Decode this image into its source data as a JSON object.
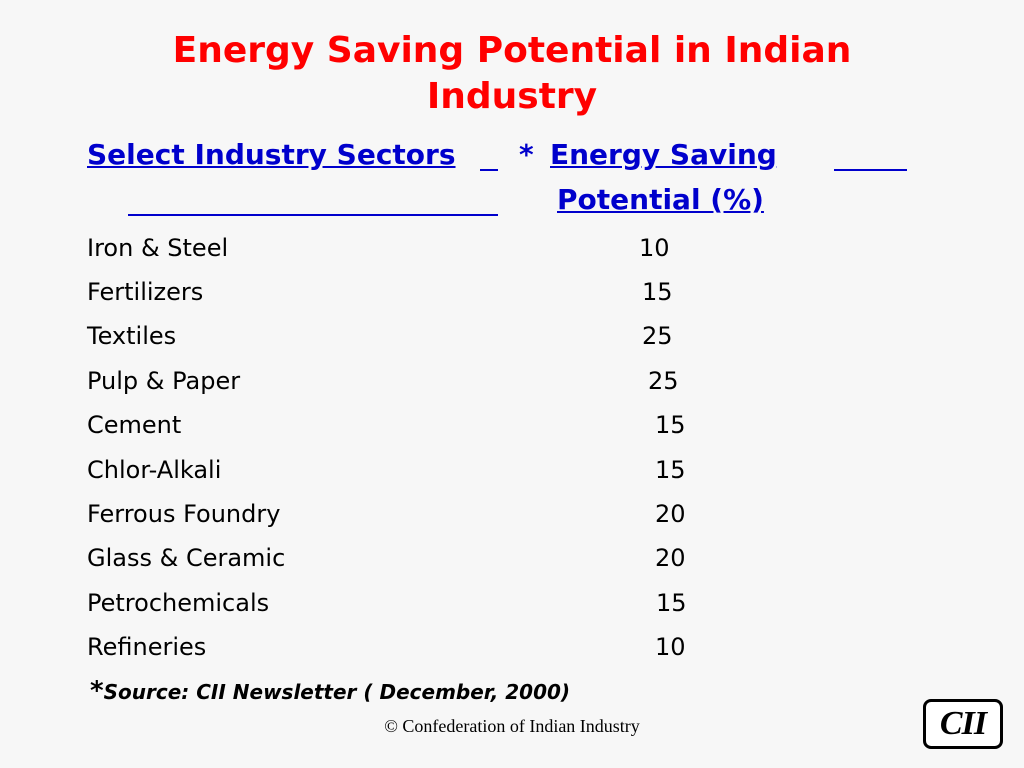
{
  "title": {
    "line1": "Energy Saving Potential in Indian",
    "line2": "Industry"
  },
  "table": {
    "header_sector": "Select Industry Sectors",
    "header_star": "*",
    "header_value_line1": "Energy Saving",
    "header_value_line2": "Potential (%)",
    "rows": [
      {
        "sector": "Iron & Steel",
        "value": "10"
      },
      {
        "sector": "Fertilizers",
        "value": "15"
      },
      {
        "sector": "Textiles",
        "value": "25"
      },
      {
        "sector": "Pulp & Paper",
        "value": "25"
      },
      {
        "sector": "Cement",
        "value": "15"
      },
      {
        "sector": "Chlor-Alkali",
        "value": "15"
      },
      {
        "sector": "Ferrous Foundry",
        "value": "20"
      },
      {
        "sector": "Glass & Ceramic",
        "value": "20"
      },
      {
        "sector": "Petrochemicals",
        "value": "15"
      },
      {
        "sector": "Refineries",
        "value": "10"
      }
    ]
  },
  "source": {
    "star": "*",
    "text": "Source: CII Newsletter ( December, 2000)"
  },
  "footer": {
    "copyright": "© Confederation of Indian Industry"
  },
  "logo": {
    "text": "CII"
  },
  "colors": {
    "title": "#ff0000",
    "header": "#0000cc",
    "background": "#f7f7f7"
  }
}
